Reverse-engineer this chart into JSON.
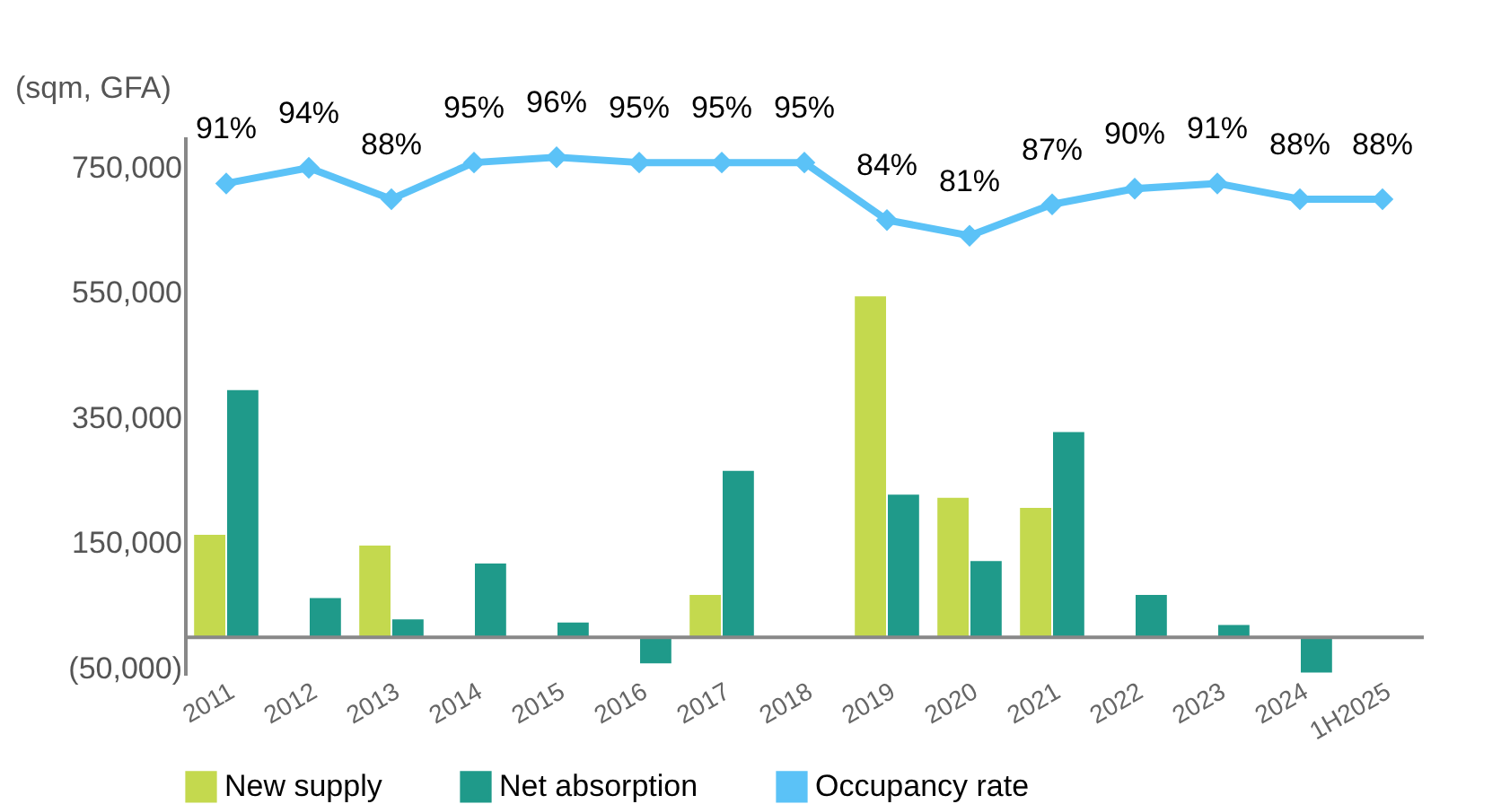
{
  "chart_data": {
    "type": "bar",
    "ylabel": "(sqm, GFA)",
    "categories": [
      "2011",
      "2012",
      "2013",
      "2014",
      "2015",
      "2016",
      "2017",
      "2018",
      "2019",
      "2020",
      "2021",
      "2022",
      "2023",
      "2024",
      "1H2025"
    ],
    "series": [
      {
        "name": "New supply",
        "color": "#c4d94e",
        "values": [
          165000,
          null,
          148000,
          null,
          null,
          null,
          69000,
          null,
          546000,
          224000,
          208000,
          null,
          null,
          null,
          null
        ]
      },
      {
        "name": "Net absorption",
        "color": "#1f9a8a",
        "values": [
          396000,
          64000,
          30000,
          119000,
          25000,
          -43000,
          267000,
          null,
          229000,
          123000,
          329000,
          69000,
          21000,
          -58000,
          null
        ]
      },
      {
        "name": "Occupancy rate",
        "type": "line",
        "axis": "y2",
        "color": "#5bc2f7",
        "marker": "diamond",
        "values": [
          91,
          94,
          88,
          95,
          96,
          95,
          95,
          95,
          84,
          81,
          87,
          90,
          91,
          88,
          88
        ],
        "value_labels": [
          "91%",
          "94%",
          "88%",
          "95%",
          "96%",
          "95%",
          "95%",
          "95%",
          "84%",
          "81%",
          "87%",
          "90%",
          "91%",
          "88%",
          "88%"
        ]
      }
    ],
    "ylim": [
      -60000,
      800000
    ],
    "yticks": [
      {
        "value": -50000,
        "label": "(50,000)"
      },
      {
        "value": 150000,
        "label": "150,000"
      },
      {
        "value": 350000,
        "label": "350,000"
      },
      {
        "value": 550000,
        "label": "550,000"
      },
      {
        "value": 750000,
        "label": "750,000"
      }
    ],
    "y2lim": [
      -3,
      100
    ],
    "legend": "bottom"
  }
}
